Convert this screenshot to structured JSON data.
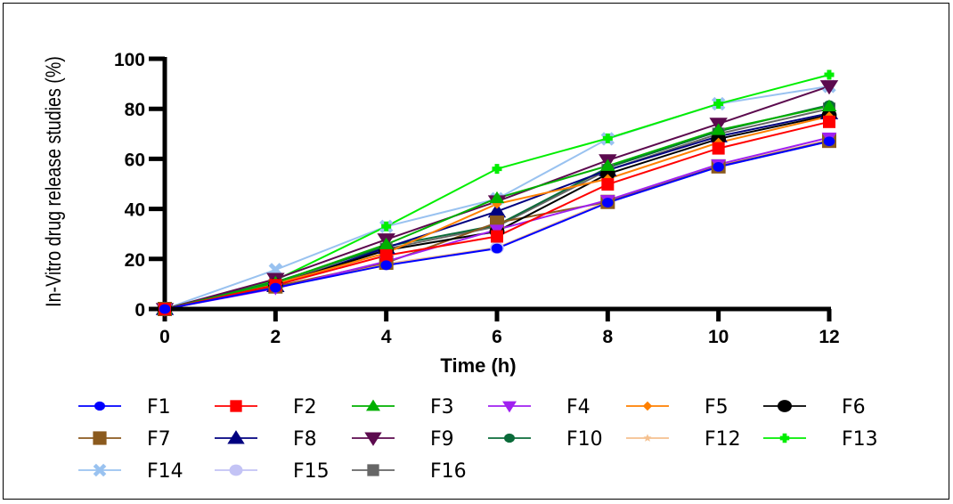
{
  "chart_data": {
    "type": "line",
    "title": "",
    "xlabel": "Time (h)",
    "ylabel": "In-Vitro drug release studies  (%)",
    "xlim": [
      0,
      12
    ],
    "ylim": [
      0,
      100
    ],
    "x": [
      0,
      2,
      4,
      6,
      8,
      10,
      12
    ],
    "x_ticks": [
      "0",
      "2",
      "4",
      "6",
      "8",
      "10",
      "12"
    ],
    "y_ticks": [
      "0",
      "20",
      "40",
      "60",
      "80",
      "100"
    ],
    "y_tick_values": [
      0,
      20,
      40,
      60,
      80,
      100
    ],
    "grid": false,
    "legend_position": "bottom",
    "series": [
      {
        "name": "F1",
        "color": "#0000ff",
        "marker": "circle",
        "values": [
          0,
          8.5,
          17.5,
          24.2,
          42.5,
          56.8,
          67.0
        ]
      },
      {
        "name": "F2",
        "color": "#ff0000",
        "marker": "square",
        "values": [
          0,
          9.5,
          21.4,
          29.0,
          49.8,
          64.2,
          74.8
        ]
      },
      {
        "name": "F3",
        "color": "#00b000",
        "marker": "triangle",
        "values": [
          0,
          10.5,
          25.8,
          44.3,
          57.2,
          71.5,
          81.0
        ]
      },
      {
        "name": "F4",
        "color": "#a020f0",
        "marker": "triangle-down",
        "values": [
          0,
          8.2,
          19.0,
          31.7,
          43.5,
          57.8,
          68.5
        ]
      },
      {
        "name": "F5",
        "color": "#ff8000",
        "marker": "diamond",
        "values": [
          0,
          10.0,
          22.4,
          42.0,
          52.0,
          66.5,
          77.0
        ]
      },
      {
        "name": "F6",
        "color": "#000000",
        "marker": "circle",
        "values": [
          0,
          9.8,
          23.5,
          31.0,
          54.0,
          68.0,
          77.5
        ]
      },
      {
        "name": "F7",
        "color": "#8b5a1e",
        "marker": "square",
        "values": [
          0,
          9.0,
          18.5,
          34.5,
          42.8,
          57.0,
          67.2
        ]
      },
      {
        "name": "F8",
        "color": "#000080",
        "marker": "triangle",
        "values": [
          0,
          9.2,
          24.5,
          39.0,
          55.5,
          69.0,
          78.2
        ]
      },
      {
        "name": "F9",
        "color": "#5c0a4e",
        "marker": "triangle-down",
        "values": [
          0,
          12.0,
          27.8,
          43.0,
          59.4,
          74.0,
          89.0
        ]
      },
      {
        "name": "F10",
        "color": "#0b6b3a",
        "marker": "circle",
        "values": [
          0,
          10.8,
          25.0,
          33.5,
          56.5,
          71.0,
          81.5
        ]
      },
      {
        "name": "F12",
        "color": "#f5c08f",
        "marker": "star",
        "values": [
          0,
          8.8,
          18.0,
          24.5,
          43.0,
          57.2,
          67.5
        ]
      },
      {
        "name": "F13",
        "color": "#00ee00",
        "marker": "cross",
        "values": [
          0,
          11.5,
          33.0,
          56.0,
          68.2,
          82.0,
          93.6
        ]
      },
      {
        "name": "F14",
        "color": "#99c2f0",
        "marker": "x",
        "values": [
          0,
          15.7,
          33.0,
          44.0,
          68.0,
          82.0,
          89.0
        ]
      },
      {
        "name": "F15",
        "color": "#c3c3f5",
        "marker": "circle",
        "values": [
          0,
          8.6,
          17.8,
          24.4,
          42.7,
          57.0,
          67.3
        ]
      },
      {
        "name": "F16",
        "color": "#666666",
        "marker": "square",
        "values": [
          0,
          10.2,
          24.0,
          33.0,
          55.5,
          70.0,
          80.0
        ]
      }
    ]
  }
}
